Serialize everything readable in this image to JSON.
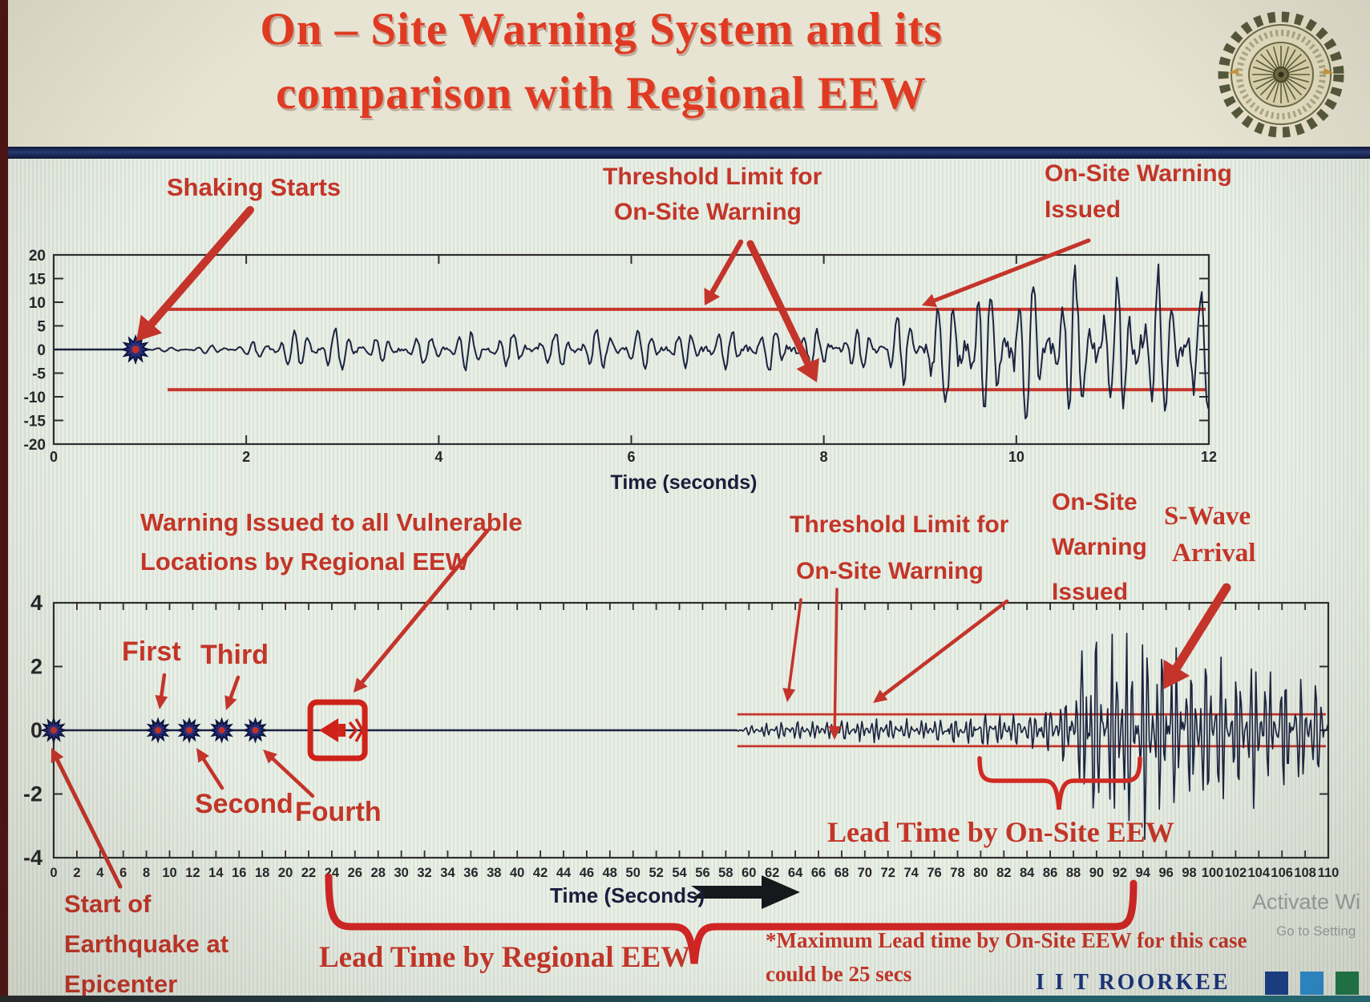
{
  "header": {
    "title_line1": "On – Site Warning System and its",
    "title_line2": "comparison with Regional EEW",
    "logo_name": "iit-roorkee-emblem"
  },
  "footer": {
    "brand": "I I T ROORKEE",
    "watermark_line1": "Activate Wi",
    "watermark_line2": "Go to Setting"
  },
  "annotations": {
    "top": {
      "shaking_starts": "Shaking Starts",
      "threshold_line1": "Threshold Limit for",
      "threshold_line2": "On-Site Warning",
      "warning_issued_line1": "On-Site Warning",
      "warning_issued_line2": "Issued"
    },
    "bottom": {
      "regional_warning_line1": "Warning Issued to all Vulnerable",
      "regional_warning_line2": "Locations by Regional EEW",
      "first": "First",
      "second": "Second",
      "third": "Third",
      "fourth": "Fourth",
      "threshold_line1": "Threshold Limit for",
      "threshold_line2": "On-Site Warning",
      "onsite_issued_line1": "On-Site",
      "onsite_issued_line2": "Warning",
      "onsite_issued_line3": "Issued",
      "swave_line1": "S-Wave",
      "swave_line2": "Arrival",
      "lead_onsite": "Lead Time by On-Site EEW",
      "lead_regional": "Lead Time by Regional EEW",
      "start_line1": "Start of",
      "start_line2": "Earthquake at",
      "start_line3": "Epicenter",
      "note_line1": "*Maximum Lead time by On-Site EEW for this case",
      "note_line2": "could be 25 secs"
    }
  },
  "chart_data": [
    {
      "type": "line",
      "name": "onsite-warning-accelerogram",
      "xlabel": "Time (seconds)",
      "ylabel": "",
      "xlim": [
        0,
        12
      ],
      "ylim": [
        -20,
        20
      ],
      "xticks": [
        0,
        2,
        4,
        6,
        8,
        10,
        12
      ],
      "yticks": [
        20,
        15,
        10,
        5,
        0,
        -5,
        -10,
        -15,
        -20
      ],
      "grid": false,
      "threshold_upper": 8.5,
      "threshold_lower": -8.5,
      "threshold_start_x": 1.1,
      "shaking_start_x": 0.85,
      "warning_issued_x": 9.05,
      "amplitude_envelope": [
        [
          0.85,
          0.2
        ],
        [
          1.4,
          0.7
        ],
        [
          2.0,
          1.1
        ],
        [
          2.45,
          4.2
        ],
        [
          2.85,
          5.0
        ],
        [
          3.25,
          2.6
        ],
        [
          3.9,
          3.0
        ],
        [
          4.35,
          4.4
        ],
        [
          4.9,
          3.1
        ],
        [
          5.45,
          3.9
        ],
        [
          5.95,
          4.6
        ],
        [
          6.45,
          3.4
        ],
        [
          7.0,
          4.2
        ],
        [
          7.55,
          4.6
        ],
        [
          8.1,
          3.9
        ],
        [
          8.6,
          5.6
        ],
        [
          9.0,
          9.2
        ],
        [
          9.3,
          11.5
        ],
        [
          9.6,
          14.5
        ],
        [
          9.95,
          16.5
        ],
        [
          10.3,
          13.0
        ],
        [
          10.65,
          17.0
        ],
        [
          11.0,
          14.0
        ],
        [
          11.35,
          17.5
        ],
        [
          11.7,
          13.5
        ],
        [
          12,
          15.0
        ]
      ]
    },
    {
      "type": "line",
      "name": "regional-vs-onsite-timeline",
      "xlabel": "Time (Seconds)",
      "ylabel": "",
      "xlim": [
        0,
        110
      ],
      "ylim": [
        -4,
        4
      ],
      "xtick_start": 0,
      "xtick_step": 2,
      "xtick_end": 110,
      "yticks": [
        4,
        2,
        0,
        -2,
        -4
      ],
      "grid": false,
      "threshold_upper": 0.5,
      "threshold_lower": -0.5,
      "threshold_start_x": 59,
      "epicenter_x": 0,
      "p_wave_detections_x": [
        9,
        11.7,
        14.5,
        17.4
      ],
      "regional_warning_x": 24.5,
      "p_wave_arrival_x": 59,
      "s_wave_arrival_x": 87.5,
      "lead_time_onsite_span_x": [
        80,
        93.8
      ],
      "lead_time_regional_span_x": [
        24,
        93
      ],
      "max_lead_time_onsite_secs": 25,
      "amplitude_envelope": [
        [
          59,
          0.08
        ],
        [
          61,
          0.2
        ],
        [
          63,
          0.28
        ],
        [
          65,
          0.32
        ],
        [
          67,
          0.3
        ],
        [
          69,
          0.34
        ],
        [
          71,
          0.4
        ],
        [
          73,
          0.35
        ],
        [
          75,
          0.3
        ],
        [
          77,
          0.42
        ],
        [
          79,
          0.46
        ],
        [
          81,
          0.52
        ],
        [
          83,
          0.48
        ],
        [
          85,
          0.6
        ],
        [
          86.5,
          0.75
        ],
        [
          87.8,
          1.3
        ],
        [
          88.8,
          2.6
        ],
        [
          89.8,
          3.4
        ],
        [
          90.8,
          2.7
        ],
        [
          91.8,
          3.5
        ],
        [
          92.8,
          2.8
        ],
        [
          93.8,
          3.3
        ],
        [
          94.8,
          2.6
        ],
        [
          96,
          3.0
        ],
        [
          97.5,
          2.3
        ],
        [
          99,
          2.8
        ],
        [
          100.5,
          2.35
        ],
        [
          102,
          2.1
        ],
        [
          103.5,
          2.3
        ],
        [
          105,
          1.8
        ],
        [
          106.5,
          2.0
        ],
        [
          108,
          1.6
        ],
        [
          110,
          1.45
        ]
      ]
    }
  ],
  "colors": {
    "annotation_red": "#c33528",
    "title_red": "#e03a22",
    "threshold_red": "#c42a20",
    "arrow_red": "#c4342a",
    "trace_navy": "#1c2440",
    "star_blue": "#26307d",
    "brand_navy": "#17337f",
    "divider_navy": "#16234e",
    "square1": "#173f8e",
    "square2": "#2a8fd4",
    "square3": "#1c7a4a"
  }
}
